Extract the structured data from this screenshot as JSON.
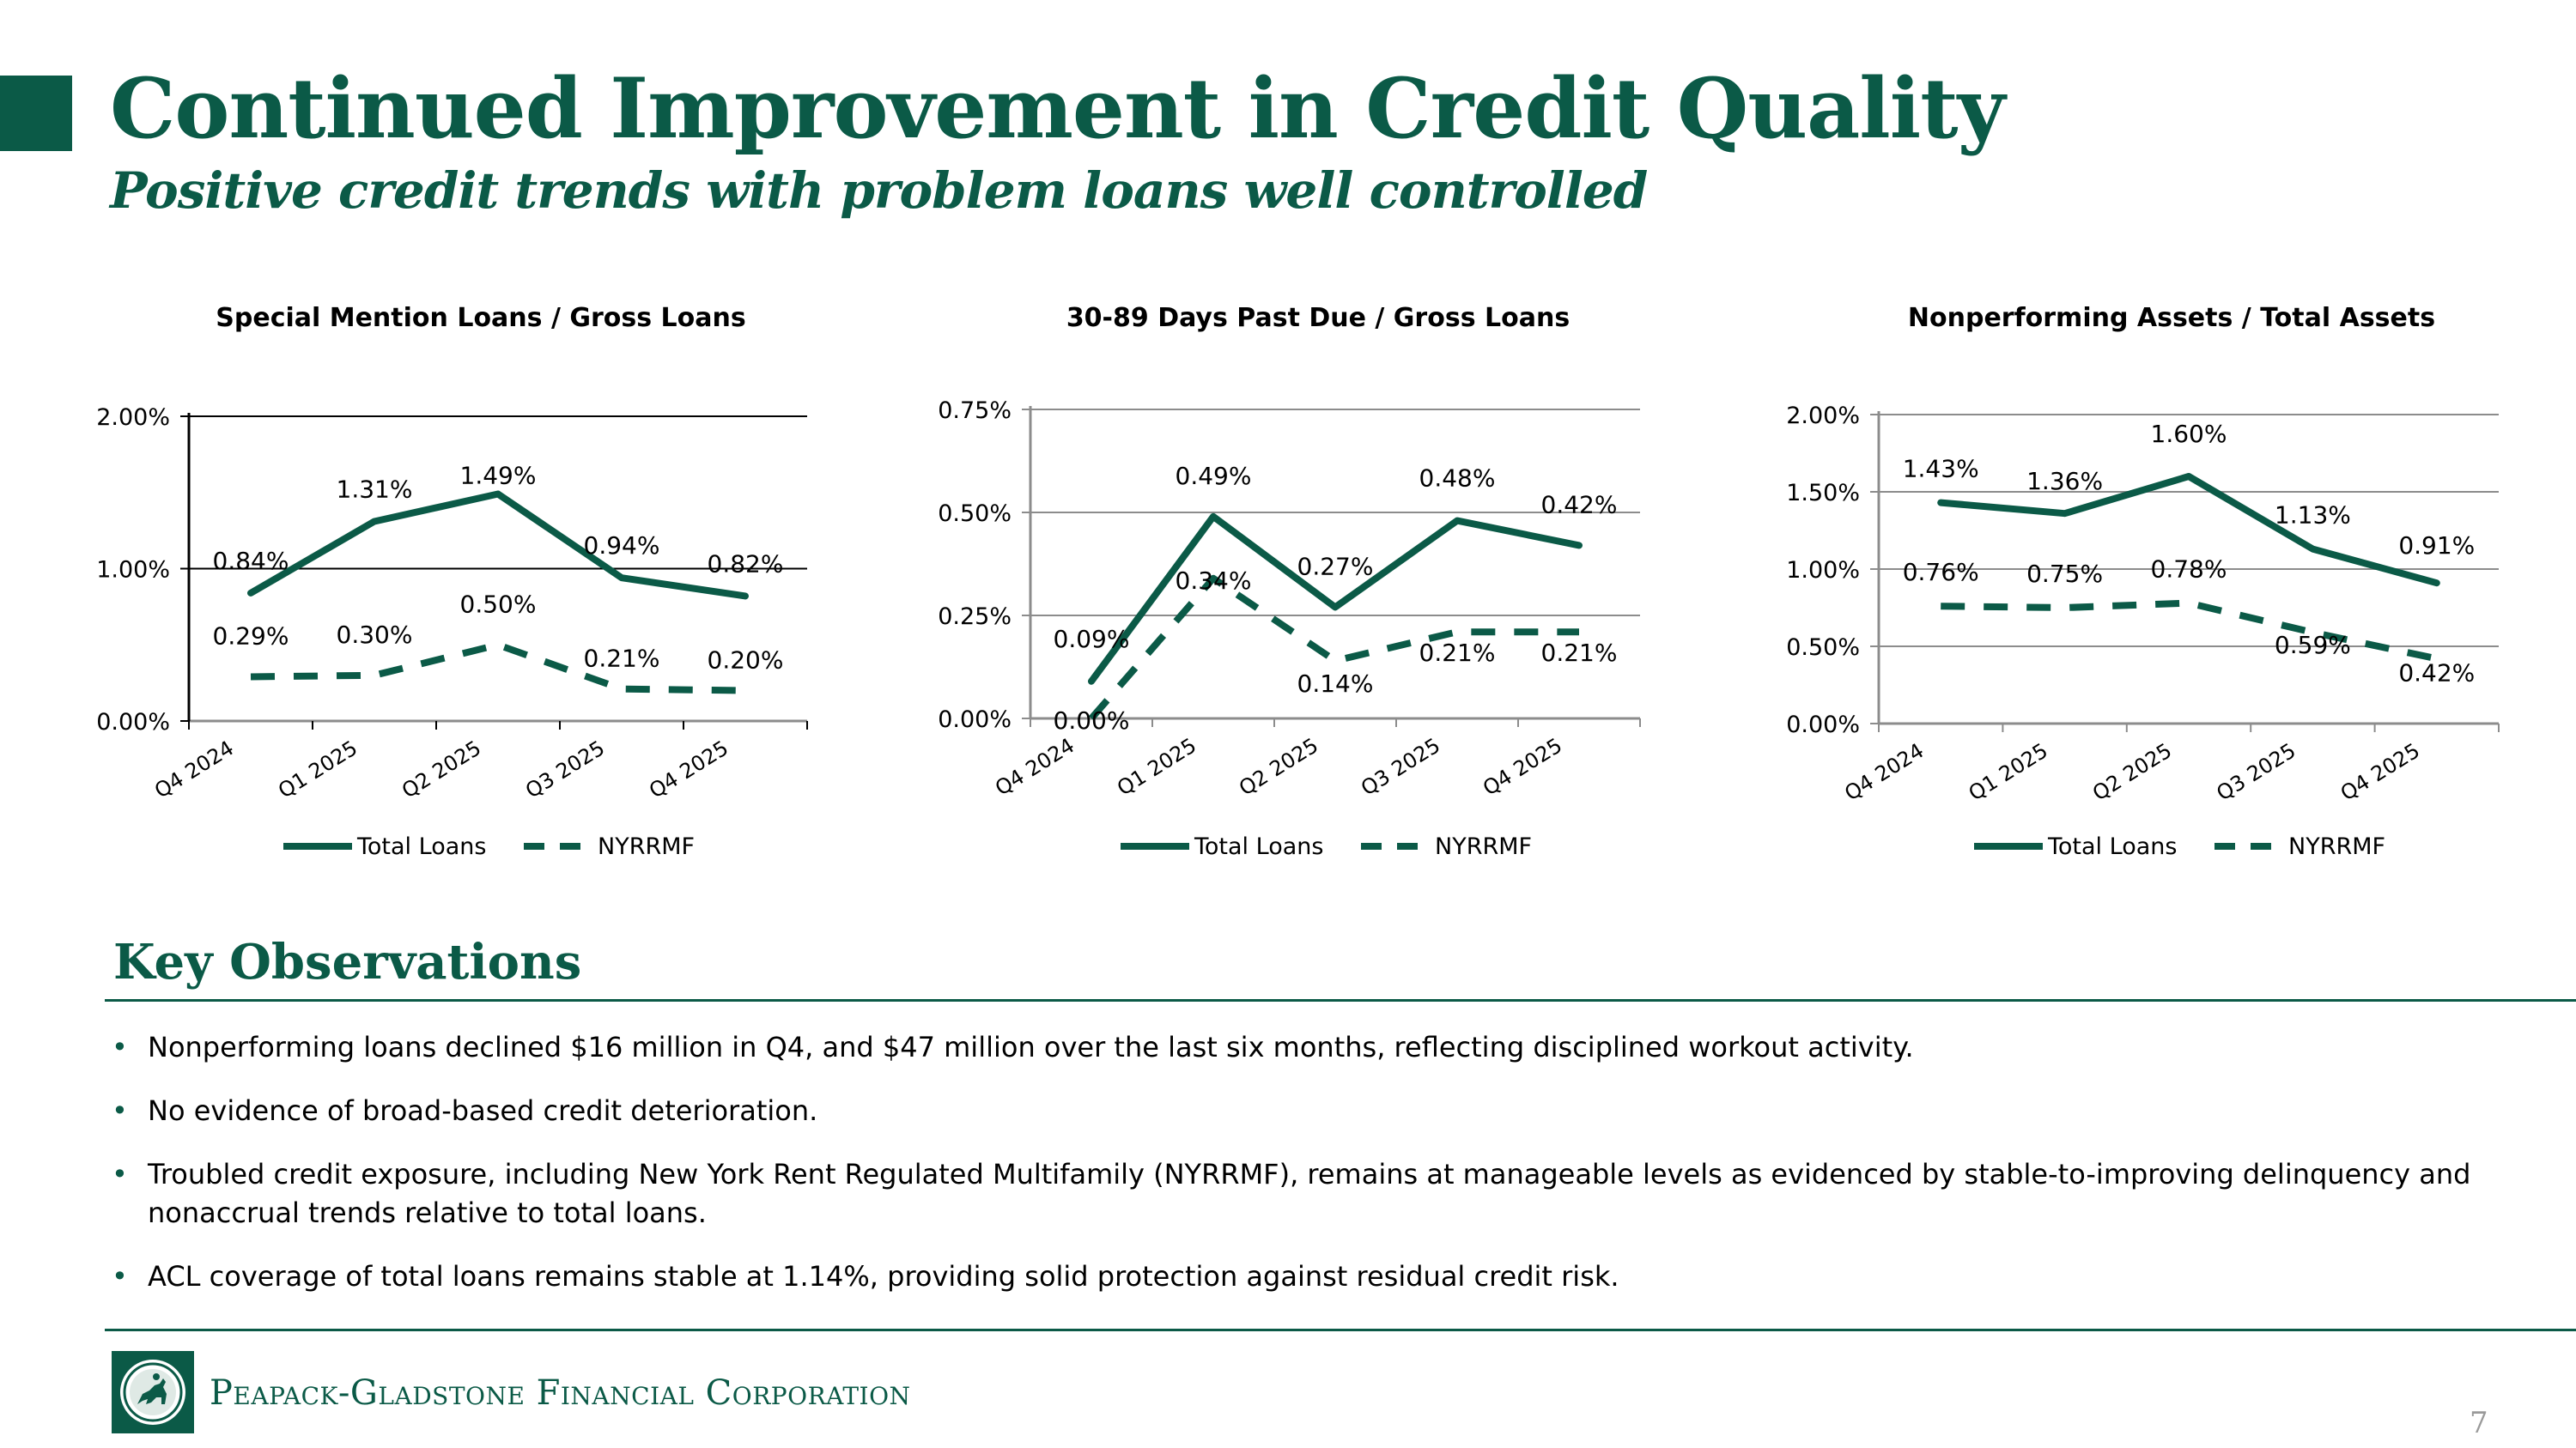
{
  "slide": {
    "title": "Continued Improvement in Credit Quality",
    "subtitle": "Positive credit trends with problem loans well controlled",
    "page_number": "7"
  },
  "colors": {
    "brand_green": "#0b5a47",
    "grid": "#8c8c8c"
  },
  "chart_data": [
    {
      "type": "line",
      "title": "Special Mention Loans / Gross Loans",
      "categories": [
        "Q4 2024",
        "Q1 2025",
        "Q2 2025",
        "Q3 2025",
        "Q4 2025"
      ],
      "ylim": [
        0,
        2.0
      ],
      "yticks": [
        "0.00%",
        "1.00%",
        "2.00%"
      ],
      "ytick_values": [
        0,
        1.0,
        2.0
      ],
      "grid": "horizontal",
      "legend": "bottom",
      "series": [
        {
          "name": "Total Loans",
          "style": "solid",
          "values": [
            0.84,
            1.31,
            1.49,
            0.94,
            0.82
          ],
          "labels": [
            "0.84%",
            "1.31%",
            "1.49%",
            "0.94%",
            "0.82%"
          ]
        },
        {
          "name": "NYRRMF",
          "style": "dashed",
          "values": [
            0.29,
            0.3,
            0.5,
            0.21,
            0.2
          ],
          "labels": [
            "0.29%",
            "0.30%",
            "0.50%",
            "0.21%",
            "0.20%"
          ]
        }
      ]
    },
    {
      "type": "line",
      "title": "30-89 Days Past Due / Gross Loans",
      "categories": [
        "Q4 2024",
        "Q1 2025",
        "Q2 2025",
        "Q3 2025",
        "Q4 2025"
      ],
      "ylim": [
        0,
        0.75
      ],
      "yticks": [
        "0.00%",
        "0.25%",
        "0.50%",
        "0.75%"
      ],
      "ytick_values": [
        0,
        0.25,
        0.5,
        0.75
      ],
      "grid": "horizontal",
      "legend": "bottom",
      "series": [
        {
          "name": "Total Loans",
          "style": "solid",
          "values": [
            0.09,
            0.49,
            0.27,
            0.48,
            0.42
          ],
          "labels": [
            "0.09%",
            "0.49%",
            "0.27%",
            "0.48%",
            "0.42%"
          ]
        },
        {
          "name": "NYRRMF",
          "style": "dashed",
          "values": [
            0.0,
            0.34,
            0.14,
            0.21,
            0.21
          ],
          "labels": [
            "0.00%",
            "0.34%",
            "0.14%",
            "0.21%",
            "0.21%"
          ]
        }
      ]
    },
    {
      "type": "line",
      "title": "Nonperforming Assets / Total Assets",
      "categories": [
        "Q4 2024",
        "Q1 2025",
        "Q2 2025",
        "Q3 2025",
        "Q4 2025"
      ],
      "ylim": [
        0,
        2.0
      ],
      "yticks": [
        "0.00%",
        "0.50%",
        "1.00%",
        "1.50%",
        "2.00%"
      ],
      "ytick_values": [
        0,
        0.5,
        1.0,
        1.5,
        2.0
      ],
      "grid": "horizontal",
      "legend": "bottom",
      "series": [
        {
          "name": "Total Loans",
          "style": "solid",
          "values": [
            1.43,
            1.36,
            1.6,
            1.13,
            0.91
          ],
          "labels": [
            "1.43%",
            "1.36%",
            "1.60%",
            "1.13%",
            "0.91%"
          ]
        },
        {
          "name": "NYRRMF",
          "style": "dashed",
          "values": [
            0.76,
            0.75,
            0.78,
            0.59,
            0.42
          ],
          "labels": [
            "0.76%",
            "0.75%",
            "0.78%",
            "0.59%",
            "0.42%"
          ]
        }
      ]
    }
  ],
  "observations": {
    "title": "Key Observations",
    "bullet_glyph": "•",
    "items": [
      "Nonperforming loans declined $16 million in Q4, and $47 million over the last six months, reflecting disciplined workout activity.",
      "No evidence of broad-based credit deterioration.",
      "Troubled credit exposure, including New York Rent Regulated Multifamily (NYRRMF), remains at manageable levels as evidenced by stable-to-improving delinquency and nonaccrual trends relative to total loans.",
      "ACL coverage of total loans remains stable at 1.14%, providing solid protection against residual credit risk."
    ]
  },
  "footer": {
    "company": "Peapack-Gladstone Financial Corporation",
    "logo_icon": "horse-rider-seal-icon"
  }
}
